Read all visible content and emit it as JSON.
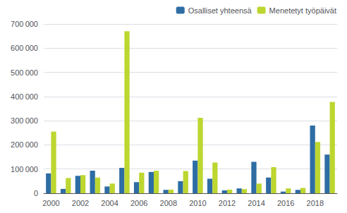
{
  "chart_data": {
    "type": "bar",
    "categories": [
      "2000",
      null,
      "2002",
      null,
      "2004",
      null,
      "2006",
      null,
      "2008",
      null,
      "2010",
      null,
      "2012",
      null,
      "2014",
      null,
      "2016",
      null,
      "2018",
      null
    ],
    "series": [
      {
        "name": "Osalliset yhteensä",
        "color": "#2e6da4",
        "values": [
          82000,
          18000,
          72000,
          93000,
          28000,
          105000,
          46000,
          88000,
          14000,
          50000,
          135000,
          60000,
          12000,
          20000,
          130000,
          65000,
          7000,
          14000,
          280000,
          160000
        ]
      },
      {
        "name": "Menetetyt työpäivät",
        "color": "#bdd630",
        "values": [
          255000,
          63000,
          75000,
          65000,
          40000,
          670000,
          85000,
          93000,
          15000,
          92000,
          312000,
          127000,
          15000,
          17000,
          40000,
          108000,
          20000,
          22000,
          212000,
          378000
        ]
      }
    ],
    "ylim": [
      0,
      700000
    ],
    "yticks": [
      0,
      {
        "value": 100000,
        "label": "100 000"
      },
      {
        "value": 200000,
        "label": "200 000"
      },
      {
        "value": 300000,
        "label": "300 000"
      },
      {
        "value": 400000,
        "label": "400 000"
      },
      {
        "value": 500000,
        "label": "500 000"
      },
      {
        "value": 600000,
        "label": "600 000"
      },
      {
        "value": 700000,
        "label": "700 000"
      }
    ],
    "grid": true,
    "legend": "upper right"
  }
}
